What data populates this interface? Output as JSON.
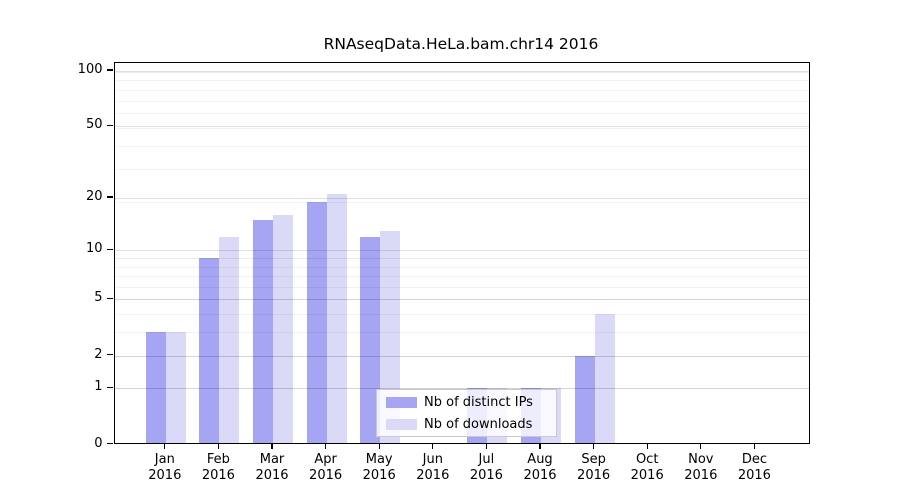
{
  "chart_data": {
    "type": "bar",
    "title": "RNAseqData.HeLa.bam.chr14 2016",
    "year": "2016",
    "categories": [
      "Jan",
      "Feb",
      "Mar",
      "Apr",
      "May",
      "Jun",
      "Jul",
      "Aug",
      "Sep",
      "Oct",
      "Nov",
      "Dec"
    ],
    "series": [
      {
        "name": "Nb of distinct IPs",
        "color": "#a5a5f3",
        "values": [
          3,
          9,
          15,
          19,
          12,
          0,
          1,
          1,
          2,
          0,
          0,
          0
        ]
      },
      {
        "name": "Nb of downloads",
        "color": "#dadaf8",
        "values": [
          3,
          12,
          16,
          21,
          13,
          0,
          1,
          1,
          4,
          0,
          0,
          0
        ]
      }
    ],
    "yticks": [
      0,
      1,
      2,
      5,
      10,
      20,
      50,
      100
    ],
    "yscale": "log1p",
    "ylim": [
      0,
      110
    ],
    "grid": true,
    "legend_position": "bottom-center",
    "colors": {
      "axis": "#000000",
      "bar_dark": "#a5a5f3",
      "bar_light": "#dadaf8",
      "grid_minor": "rgba(0,0,0,0.05)",
      "grid_decade": "rgba(0,0,0,0.08)",
      "grid_major": "rgba(0,0,0,0.12)",
      "legend_border": "#c9c9c9",
      "legend_bg": "rgba(255,255,255,0.8)"
    }
  }
}
